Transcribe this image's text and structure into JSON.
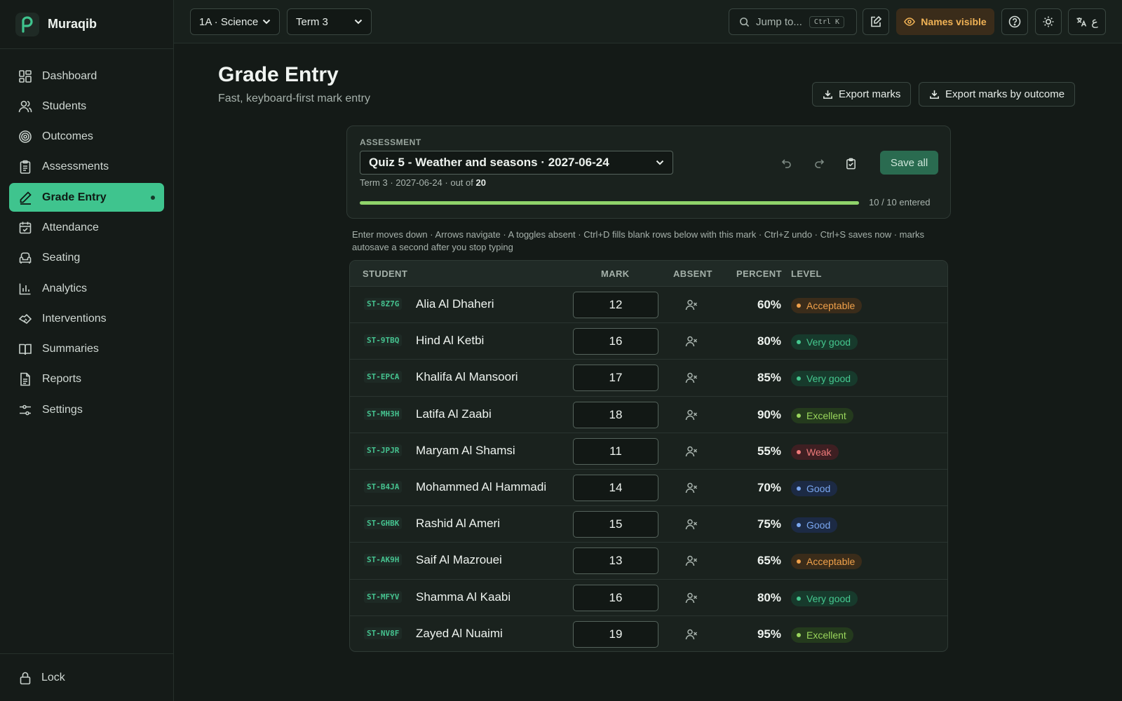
{
  "app": {
    "name": "Muraqib"
  },
  "sidebar": {
    "items": [
      {
        "label": "Dashboard",
        "icon": "grid-icon"
      },
      {
        "label": "Students",
        "icon": "users-icon"
      },
      {
        "label": "Outcomes",
        "icon": "target-icon"
      },
      {
        "label": "Assessments",
        "icon": "clipboard-icon"
      },
      {
        "label": "Grade Entry",
        "icon": "pen-icon",
        "active": true
      },
      {
        "label": "Attendance",
        "icon": "calendar-check-icon"
      },
      {
        "label": "Seating",
        "icon": "armchair-icon"
      },
      {
        "label": "Analytics",
        "icon": "bar-chart-icon"
      },
      {
        "label": "Interventions",
        "icon": "handshake-icon"
      },
      {
        "label": "Summaries",
        "icon": "book-icon"
      },
      {
        "label": "Reports",
        "icon": "file-text-icon"
      },
      {
        "label": "Settings",
        "icon": "sliders-icon"
      }
    ],
    "lock_label": "Lock"
  },
  "topbar": {
    "class_select": "1A · Science",
    "term_select": "Term 3",
    "jump_placeholder": "Jump to...",
    "jump_shortcut": "Ctrl K",
    "names_visible": "Names visible",
    "lang_arabic": "ع"
  },
  "page": {
    "title": "Grade Entry",
    "subtitle": "Fast, keyboard-first mark entry",
    "export_marks": "Export marks",
    "export_by_outcome": "Export marks by outcome"
  },
  "assessment": {
    "label": "ASSESSMENT",
    "selected": "Quiz 5 - Weather and seasons · 2027-06-24",
    "meta_prefix": "Term 3 · 2027-06-24 · out of",
    "out_of": "20",
    "save_all": "Save all",
    "progress_text": "10 / 10 entered",
    "progress_fraction": 1.0
  },
  "hint": "Enter moves down · Arrows navigate · A toggles absent · Ctrl+D fills blank rows below with this mark · Ctrl+Z undo · Ctrl+S saves now · marks autosave a second after you stop typing",
  "table": {
    "headers": {
      "student": "STUDENT",
      "mark": "MARK",
      "absent": "ABSENT",
      "percent": "PERCENT",
      "level": "LEVEL"
    },
    "rows": [
      {
        "id": "ST-8Z7G",
        "name": "Alia Al Dhaheri",
        "mark": "12",
        "percent": "60%",
        "level": "Acceptable"
      },
      {
        "id": "ST-9TBQ",
        "name": "Hind Al Ketbi",
        "mark": "16",
        "percent": "80%",
        "level": "Very good"
      },
      {
        "id": "ST-EPCA",
        "name": "Khalifa Al Mansoori",
        "mark": "17",
        "percent": "85%",
        "level": "Very good"
      },
      {
        "id": "ST-MH3H",
        "name": "Latifa Al Zaabi",
        "mark": "18",
        "percent": "90%",
        "level": "Excellent"
      },
      {
        "id": "ST-JPJR",
        "name": "Maryam Al Shamsi",
        "mark": "11",
        "percent": "55%",
        "level": "Weak"
      },
      {
        "id": "ST-B4JA",
        "name": "Mohammed Al Hammadi",
        "mark": "14",
        "percent": "70%",
        "level": "Good"
      },
      {
        "id": "ST-GHBK",
        "name": "Rashid Al Ameri",
        "mark": "15",
        "percent": "75%",
        "level": "Good"
      },
      {
        "id": "ST-AK9H",
        "name": "Saif Al Mazrouei",
        "mark": "13",
        "percent": "65%",
        "level": "Acceptable"
      },
      {
        "id": "ST-MFYV",
        "name": "Shamma Al Kaabi",
        "mark": "16",
        "percent": "80%",
        "level": "Very good"
      },
      {
        "id": "ST-NV8F",
        "name": "Zayed Al Nuaimi",
        "mark": "19",
        "percent": "95%",
        "level": "Excellent"
      }
    ]
  },
  "colors": {
    "accent": "#3fc48e",
    "level_acceptable": "#f0a14a",
    "level_very_good": "#45c88f",
    "level_excellent": "#9ad65c",
    "level_weak": "#f07a7a",
    "level_good": "#7aa7f0"
  }
}
